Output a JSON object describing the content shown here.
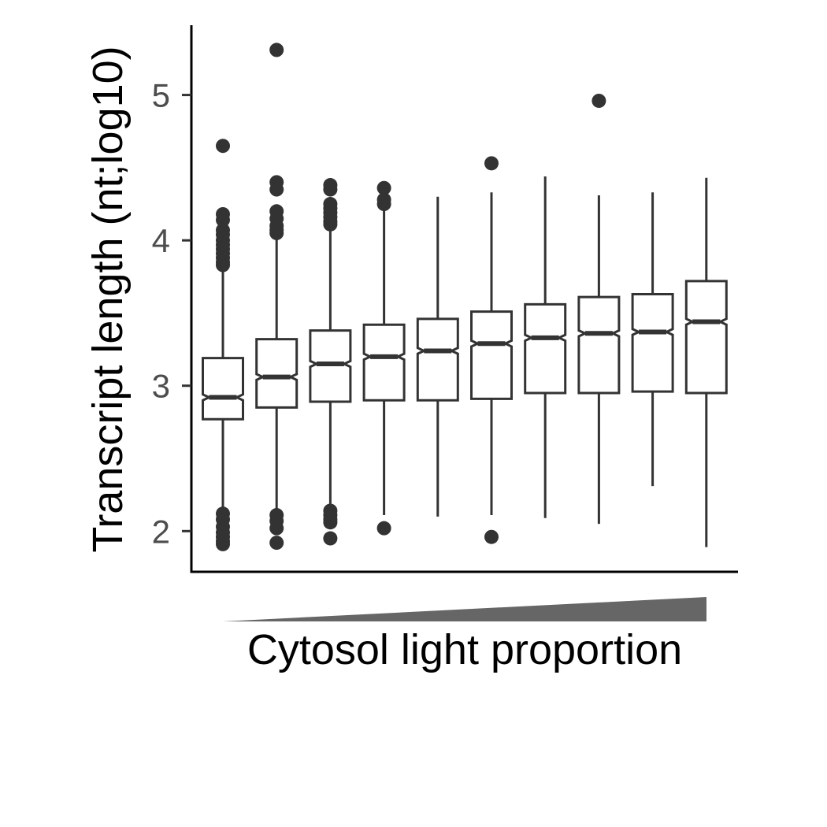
{
  "chart_data": {
    "type": "boxplot",
    "notched": true,
    "xlabel": "Cytosol light proportion",
    "ylabel": "Transcript length (nt;log10)",
    "ylim": [
      1.72,
      5.48
    ],
    "yticks": [
      2,
      3,
      4,
      5
    ],
    "ytick_labels": [
      "2",
      "3",
      "4",
      "5"
    ],
    "x_tick_labels": [],
    "x_indicator": "increasing wedge",
    "grid": false,
    "legend": "none",
    "colors": {
      "box_fill": "#ffffff",
      "line": "#333333",
      "wedge": "#666666",
      "tick_text": "#4d4d4d"
    },
    "groups": [
      {
        "q1": 2.77,
        "median": 2.92,
        "q3": 3.19,
        "notch_low": 2.9,
        "notch_high": 2.94,
        "whisker_low": 2.13,
        "whisker_high": 3.81,
        "outliers": [
          4.65,
          4.18,
          4.14,
          4.07,
          4.04,
          4.0,
          3.97,
          3.94,
          3.91,
          3.88,
          3.85,
          3.83,
          2.12,
          2.08,
          2.03,
          1.99,
          1.96,
          1.93,
          1.91
        ]
      },
      {
        "q1": 2.85,
        "median": 3.06,
        "q3": 3.32,
        "notch_low": 3.04,
        "notch_high": 3.08,
        "whisker_low": 2.13,
        "whisker_high": 4.03,
        "outliers": [
          5.31,
          4.4,
          4.35,
          4.2,
          4.15,
          4.1,
          4.07,
          4.05,
          2.11,
          2.07,
          2.02,
          1.92
        ]
      },
      {
        "q1": 2.89,
        "median": 3.15,
        "q3": 3.38,
        "notch_low": 3.13,
        "notch_high": 3.17,
        "whisker_low": 2.16,
        "whisker_high": 4.1,
        "outliers": [
          4.38,
          4.35,
          4.25,
          4.22,
          4.19,
          4.16,
          4.13,
          4.11,
          2.14,
          2.11,
          2.08,
          2.06,
          1.95
        ]
      },
      {
        "q1": 2.9,
        "median": 3.2,
        "q3": 3.42,
        "notch_low": 3.18,
        "notch_high": 3.22,
        "whisker_low": 2.11,
        "whisker_high": 4.21,
        "outliers": [
          4.36,
          4.28,
          4.25,
          2.02
        ]
      },
      {
        "q1": 2.9,
        "median": 3.24,
        "q3": 3.46,
        "notch_low": 3.22,
        "notch_high": 3.26,
        "whisker_low": 2.1,
        "whisker_high": 4.3,
        "outliers": []
      },
      {
        "q1": 2.91,
        "median": 3.29,
        "q3": 3.51,
        "notch_low": 3.27,
        "notch_high": 3.31,
        "whisker_low": 2.11,
        "whisker_high": 4.33,
        "outliers": [
          4.53,
          1.96
        ]
      },
      {
        "q1": 2.95,
        "median": 3.33,
        "q3": 3.56,
        "notch_low": 3.31,
        "notch_high": 3.35,
        "whisker_low": 2.09,
        "whisker_high": 4.44,
        "outliers": []
      },
      {
        "q1": 2.95,
        "median": 3.36,
        "q3": 3.61,
        "notch_low": 3.34,
        "notch_high": 3.38,
        "whisker_low": 2.05,
        "whisker_high": 4.31,
        "outliers": [
          4.96
        ]
      },
      {
        "q1": 2.96,
        "median": 3.37,
        "q3": 3.63,
        "notch_low": 3.35,
        "notch_high": 3.39,
        "whisker_low": 2.31,
        "whisker_high": 4.33,
        "outliers": []
      },
      {
        "q1": 2.95,
        "median": 3.44,
        "q3": 3.72,
        "notch_low": 3.42,
        "notch_high": 3.46,
        "whisker_low": 1.89,
        "whisker_high": 4.43,
        "outliers": []
      }
    ]
  }
}
